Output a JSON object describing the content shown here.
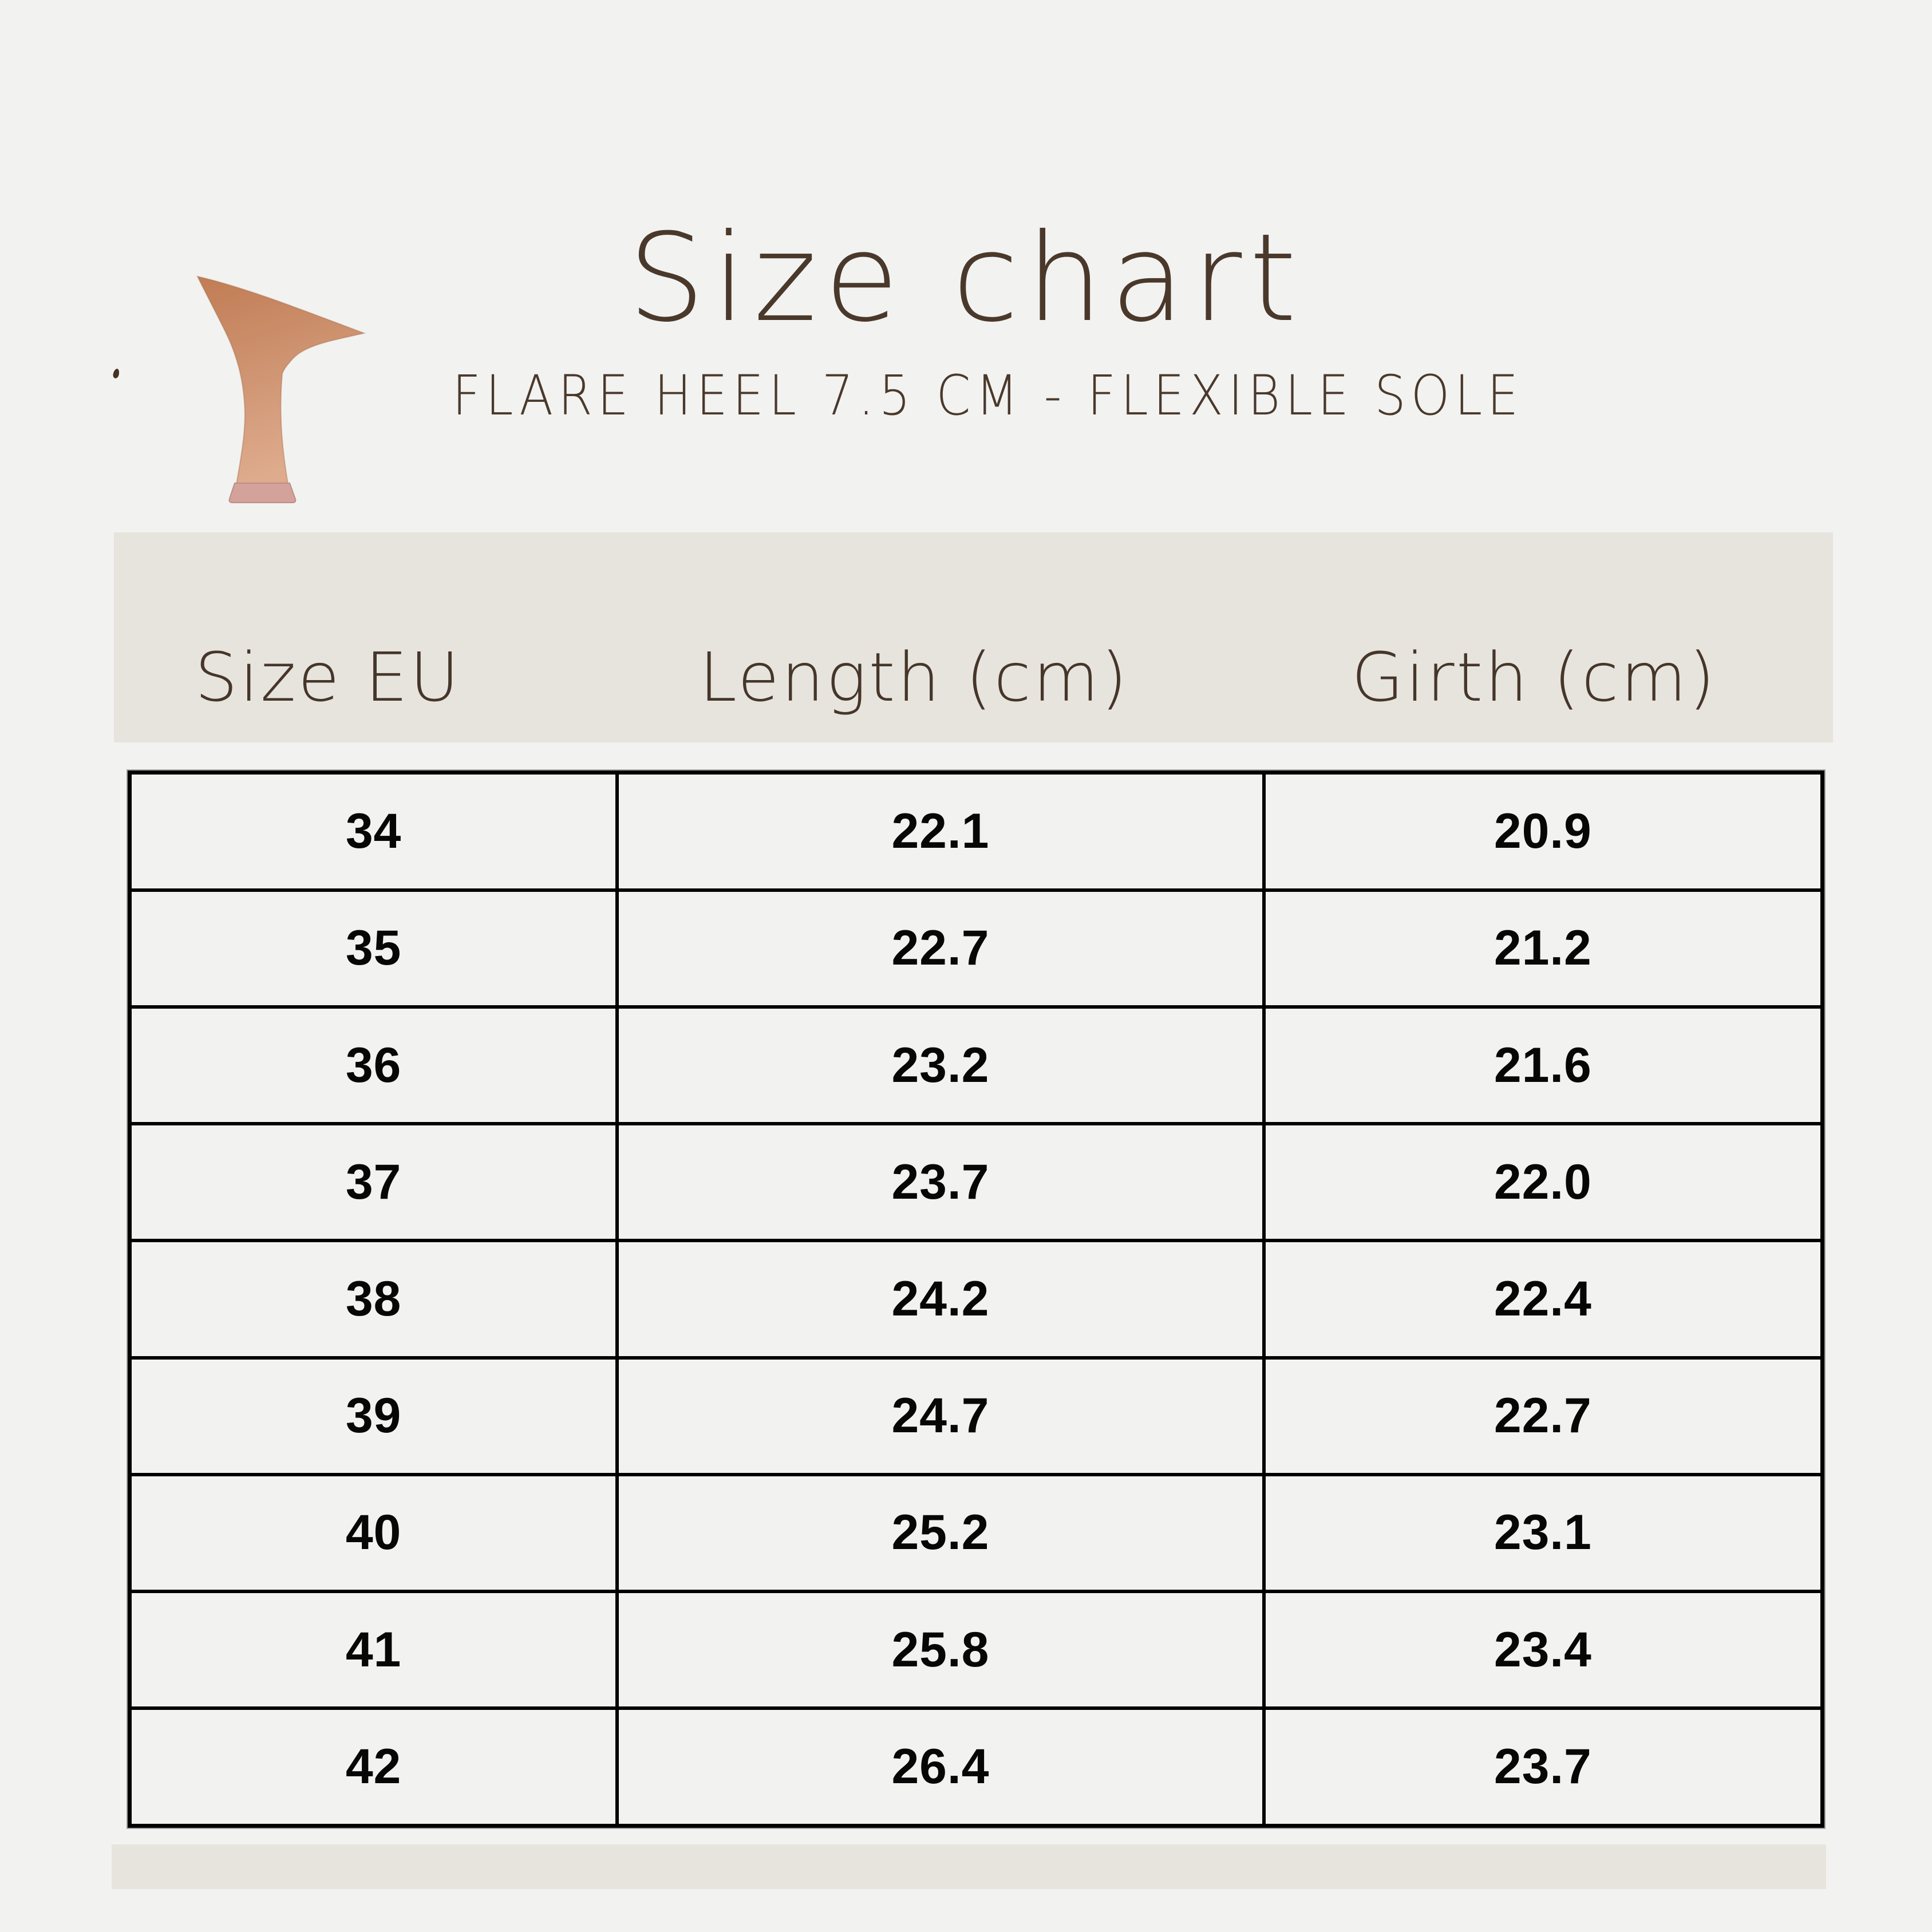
{
  "title": "Size chart",
  "subtitle": "FLARE HEEL 7.5 CM - FLEXIBLE SOLE",
  "icons": {
    "heel_icon": "flared-high-heel-side-view",
    "apostrophe_mark": "small-ink-speck"
  },
  "colors": {
    "page_background": "#f2f2f1",
    "band_beige": "#e7e4de",
    "text_brown": "#4a392b",
    "table_border": "#000000",
    "cell_text": "#070707",
    "heel_tan_top": "#c17c54",
    "heel_tan_mid": "#cd916e",
    "heel_tan_bottom": "#deab8d",
    "heel_tip_pink": "#d3a29b"
  },
  "table": {
    "columns": [
      "Size EU",
      "Length (cm)",
      "Girth (cm)"
    ],
    "rows": [
      [
        "34",
        "22.1",
        "20.9"
      ],
      [
        "35",
        "22.7",
        "21.2"
      ],
      [
        "36",
        "23.2",
        "21.6"
      ],
      [
        "37",
        "23.7",
        "22.0"
      ],
      [
        "38",
        "24.2",
        "22.4"
      ],
      [
        "39",
        "24.7",
        "22.7"
      ],
      [
        "40",
        "25.2",
        "23.1"
      ],
      [
        "41",
        "25.8",
        "23.4"
      ],
      [
        "42",
        "26.4",
        "23.7"
      ]
    ]
  }
}
